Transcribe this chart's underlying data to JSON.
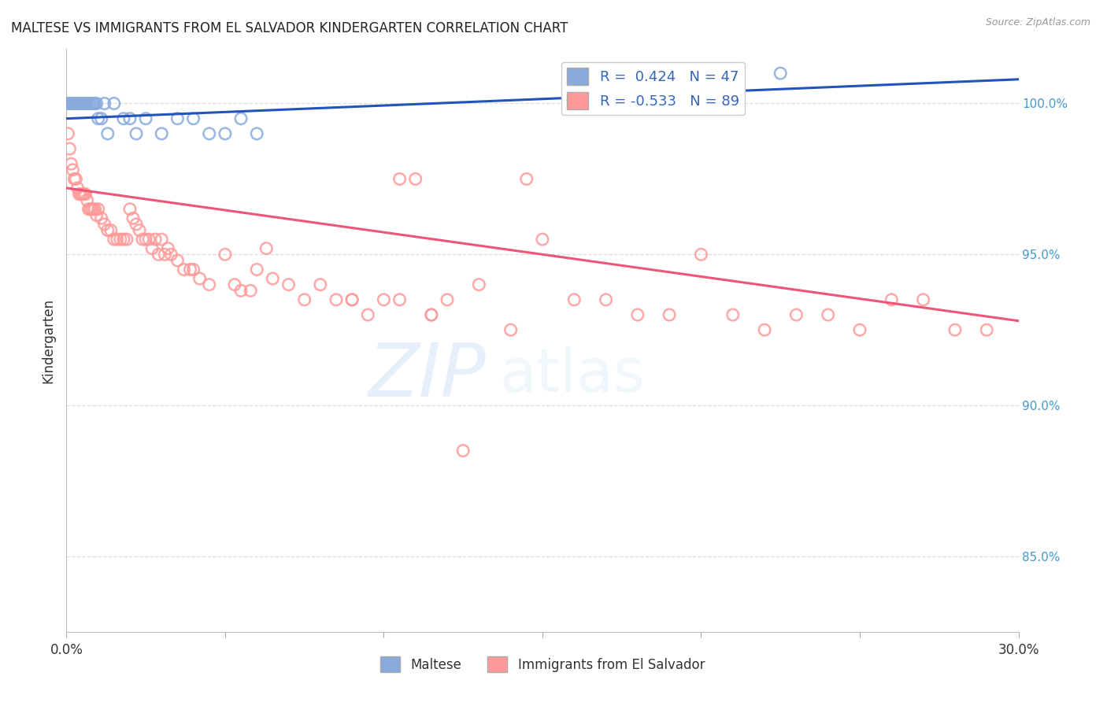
{
  "title": "MALTESE VS IMMIGRANTS FROM EL SALVADOR KINDERGARTEN CORRELATION CHART",
  "source": "Source: ZipAtlas.com",
  "ylabel": "Kindergarten",
  "blue_R": 0.424,
  "blue_N": 47,
  "pink_R": -0.533,
  "pink_N": 89,
  "blue_label": "Maltese",
  "pink_label": "Immigrants from El Salvador",
  "xmin": 0.0,
  "xmax": 30.0,
  "ymin": 82.5,
  "ymax": 101.8,
  "right_yticks": [
    85.0,
    90.0,
    95.0,
    100.0
  ],
  "blue_color": "#88AADD",
  "pink_color": "#FF9999",
  "blue_line_color": "#2255BB",
  "pink_line_color": "#EE5577",
  "grid_color": "#DDDDDD",
  "blue_scatter_x": [
    0.05,
    0.08,
    0.1,
    0.12,
    0.15,
    0.18,
    0.2,
    0.22,
    0.25,
    0.28,
    0.3,
    0.33,
    0.35,
    0.38,
    0.4,
    0.42,
    0.45,
    0.48,
    0.5,
    0.52,
    0.55,
    0.58,
    0.6,
    0.65,
    0.7,
    0.75,
    0.8,
    0.85,
    0.9,
    0.95,
    1.0,
    1.1,
    1.2,
    1.3,
    1.5,
    1.8,
    2.0,
    2.2,
    2.5,
    3.0,
    3.5,
    4.0,
    4.5,
    5.0,
    5.5,
    6.0,
    22.5
  ],
  "blue_scatter_y": [
    100.0,
    100.0,
    100.0,
    100.0,
    100.0,
    100.0,
    100.0,
    100.0,
    100.0,
    100.0,
    100.0,
    100.0,
    100.0,
    100.0,
    100.0,
    100.0,
    100.0,
    100.0,
    100.0,
    100.0,
    100.0,
    100.0,
    100.0,
    100.0,
    100.0,
    100.0,
    100.0,
    100.0,
    100.0,
    100.0,
    99.5,
    99.5,
    100.0,
    99.0,
    100.0,
    99.5,
    99.5,
    99.0,
    99.5,
    99.0,
    99.5,
    99.5,
    99.0,
    99.0,
    99.5,
    99.0,
    101.0
  ],
  "pink_scatter_x": [
    0.05,
    0.1,
    0.15,
    0.2,
    0.25,
    0.3,
    0.35,
    0.4,
    0.45,
    0.5,
    0.55,
    0.6,
    0.65,
    0.7,
    0.75,
    0.8,
    0.85,
    0.9,
    0.95,
    1.0,
    1.1,
    1.2,
    1.3,
    1.4,
    1.5,
    1.6,
    1.7,
    1.8,
    1.9,
    2.0,
    2.1,
    2.2,
    2.3,
    2.4,
    2.5,
    2.6,
    2.7,
    2.8,
    2.9,
    3.0,
    3.1,
    3.2,
    3.3,
    3.5,
    3.7,
    3.9,
    4.0,
    4.2,
    4.5,
    5.0,
    5.3,
    5.5,
    5.8,
    6.0,
    6.3,
    6.5,
    7.0,
    7.5,
    8.0,
    8.5,
    9.0,
    9.5,
    10.0,
    10.5,
    11.0,
    11.5,
    12.0,
    13.0,
    14.0,
    15.0,
    16.0,
    17.0,
    18.0,
    19.0,
    20.0,
    21.0,
    22.0,
    23.0,
    24.0,
    25.0,
    26.0,
    27.0,
    28.0,
    29.0,
    9.0,
    10.5,
    11.5,
    12.5,
    14.5
  ],
  "pink_scatter_y": [
    99.0,
    98.5,
    98.0,
    97.8,
    97.5,
    97.5,
    97.2,
    97.0,
    97.0,
    97.0,
    97.0,
    97.0,
    96.8,
    96.5,
    96.5,
    96.5,
    96.5,
    96.5,
    96.3,
    96.5,
    96.2,
    96.0,
    95.8,
    95.8,
    95.5,
    95.5,
    95.5,
    95.5,
    95.5,
    96.5,
    96.2,
    96.0,
    95.8,
    95.5,
    95.5,
    95.5,
    95.2,
    95.5,
    95.0,
    95.5,
    95.0,
    95.2,
    95.0,
    94.8,
    94.5,
    94.5,
    94.5,
    94.2,
    94.0,
    95.0,
    94.0,
    93.8,
    93.8,
    94.5,
    95.2,
    94.2,
    94.0,
    93.5,
    94.0,
    93.5,
    93.5,
    93.0,
    93.5,
    97.5,
    97.5,
    93.0,
    93.5,
    94.0,
    92.5,
    95.5,
    93.5,
    93.5,
    93.0,
    93.0,
    95.0,
    93.0,
    92.5,
    93.0,
    93.0,
    92.5,
    93.5,
    93.5,
    92.5,
    92.5,
    93.5,
    93.5,
    93.0,
    88.5,
    97.5
  ]
}
